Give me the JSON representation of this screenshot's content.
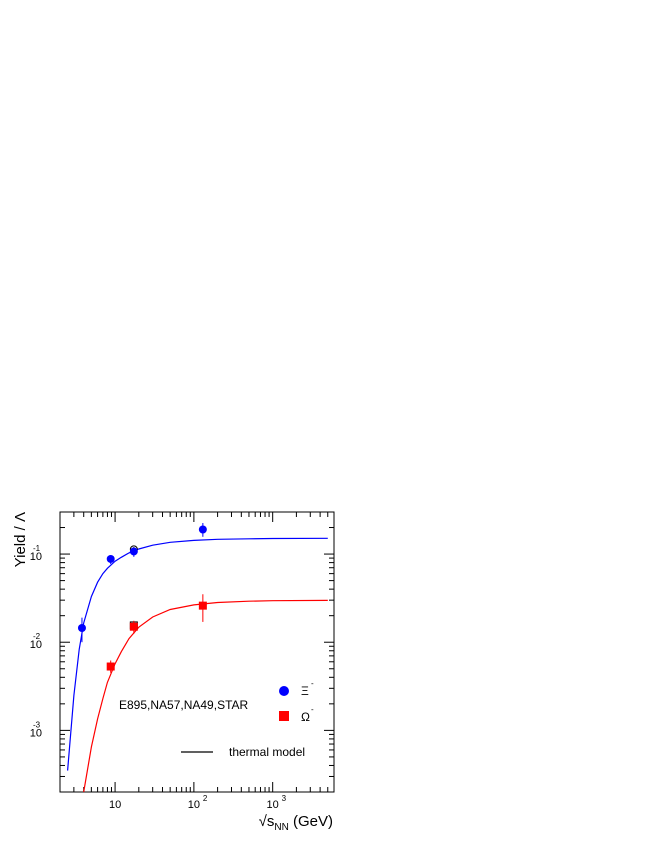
{
  "chart_data": {
    "type": "scatter",
    "xscale": "log",
    "yscale": "log",
    "xlim": [
      2,
      6000
    ],
    "ylim": [
      0.0002,
      0.3
    ],
    "xlabel": "√s",
    "xlabel_sub": "NN",
    "xlabel_unit": " (GeV)",
    "ylabel": "Yield / Λ",
    "x_ticks": [
      {
        "value": 10,
        "base": "10",
        "exp": ""
      },
      {
        "value": 100,
        "base": "10",
        "exp": "2"
      },
      {
        "value": 1000,
        "base": "10",
        "exp": "3"
      }
    ],
    "y_ticks": [
      {
        "value": 0.1,
        "base": "10",
        "exp": "-1"
      },
      {
        "value": 0.01,
        "base": "10",
        "exp": "-2"
      },
      {
        "value": 0.001,
        "base": "10",
        "exp": "-3"
      }
    ],
    "grid": false,
    "annotation": "E895,NA57,NA49,STAR",
    "legend_position": "bottom-right",
    "series": [
      {
        "name": "Ξ",
        "name_sup": "-",
        "color": "#0000ff",
        "marker": "circle",
        "points": [
          {
            "x": 3.8,
            "y": 0.0145,
            "ylo": 0.01,
            "yhi": 0.019
          },
          {
            "x": 8.8,
            "y": 0.088,
            "ylo": 0.077,
            "yhi": 0.097
          },
          {
            "x": 17.3,
            "y": 0.107,
            "ylo": 0.093,
            "yhi": 0.118
          },
          {
            "x": 130,
            "y": 0.19,
            "ylo": 0.157,
            "yhi": 0.225
          }
        ],
        "open_points": [
          {
            "x": 17.3,
            "y": 0.113,
            "ylo": 0.107,
            "yhi": 0.12
          }
        ]
      },
      {
        "name": "Ω",
        "name_sup": "-",
        "color": "#ff0000",
        "marker": "square",
        "points": [
          {
            "x": 8.8,
            "y": 0.0053,
            "ylo": 0.0045,
            "yhi": 0.0062
          },
          {
            "x": 17.3,
            "y": 0.015,
            "ylo": 0.0125,
            "yhi": 0.0175
          },
          {
            "x": 130,
            "y": 0.026,
            "ylo": 0.017,
            "yhi": 0.035
          }
        ],
        "open_points": [
          {
            "x": 17.3,
            "y": 0.0155,
            "ylo": 0.0145,
            "yhi": 0.0167
          }
        ]
      }
    ],
    "curves": [
      {
        "label": "thermal model",
        "color": "#0000ff",
        "points": [
          [
            2.5,
            0.00035
          ],
          [
            3,
            0.0025
          ],
          [
            3.5,
            0.0083
          ],
          [
            4,
            0.0165
          ],
          [
            5,
            0.033
          ],
          [
            6,
            0.048
          ],
          [
            7,
            0.06
          ],
          [
            8,
            0.069
          ],
          [
            10,
            0.083
          ],
          [
            12,
            0.092
          ],
          [
            15,
            0.103
          ],
          [
            20,
            0.114
          ],
          [
            30,
            0.126
          ],
          [
            50,
            0.136
          ],
          [
            100,
            0.143
          ],
          [
            200,
            0.147
          ],
          [
            500,
            0.149
          ],
          [
            1000,
            0.15
          ],
          [
            5000,
            0.151
          ]
        ]
      },
      {
        "label": "thermal model",
        "color": "#ff0000",
        "points": [
          [
            4,
            0.0002
          ],
          [
            5,
            0.00065
          ],
          [
            6,
            0.00135
          ],
          [
            7,
            0.0023
          ],
          [
            8,
            0.0035
          ],
          [
            10,
            0.0057
          ],
          [
            12,
            0.0078
          ],
          [
            15,
            0.011
          ],
          [
            20,
            0.0148
          ],
          [
            30,
            0.0193
          ],
          [
            50,
            0.0235
          ],
          [
            100,
            0.0265
          ],
          [
            200,
            0.0282
          ],
          [
            500,
            0.0292
          ],
          [
            1000,
            0.0296
          ],
          [
            5000,
            0.0298
          ]
        ]
      }
    ],
    "model_legend_label": "thermal model"
  }
}
